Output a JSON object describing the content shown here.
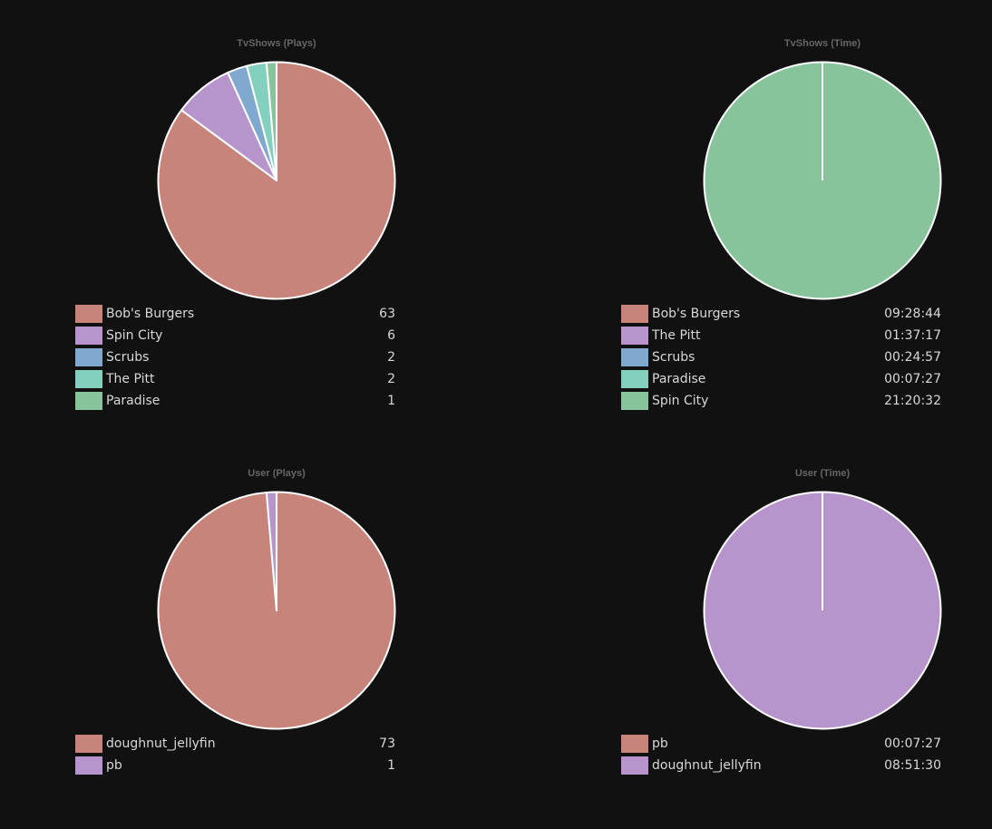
{
  "colors": [
    "#c8847a",
    "#b794cb",
    "#7fa9cf",
    "#83d0bf",
    "#87c49c"
  ],
  "chart_data": [
    {
      "type": "pie",
      "title": "TvShows (Plays)",
      "labels": [
        "Bob's Burgers",
        "Spin City",
        "Scrubs",
        "The Pitt",
        "Paradise"
      ],
      "display_values": [
        "63",
        "6",
        "2",
        "2",
        "1"
      ],
      "values": [
        63,
        6,
        2,
        2,
        1
      ]
    },
    {
      "type": "pie",
      "title": "TvShows (Time)",
      "labels": [
        "Bob's Burgers",
        "The Pitt",
        "Scrubs",
        "Paradise",
        "Spin City"
      ],
      "display_values": [
        "09:28:44",
        "01:37:17",
        "00:24:57",
        "00:07:27",
        "21:20:32"
      ],
      "values": [
        0,
        0,
        0,
        0,
        1
      ]
    },
    {
      "type": "pie",
      "title": "User (Plays)",
      "labels": [
        "doughnut_jellyfin",
        "pb"
      ],
      "display_values": [
        "73",
        "1"
      ],
      "values": [
        73,
        1
      ]
    },
    {
      "type": "pie",
      "title": "User (Time)",
      "labels": [
        "pb",
        "doughnut_jellyfin"
      ],
      "display_values": [
        "00:07:27",
        "08:51:30"
      ],
      "values": [
        0,
        1
      ]
    }
  ]
}
